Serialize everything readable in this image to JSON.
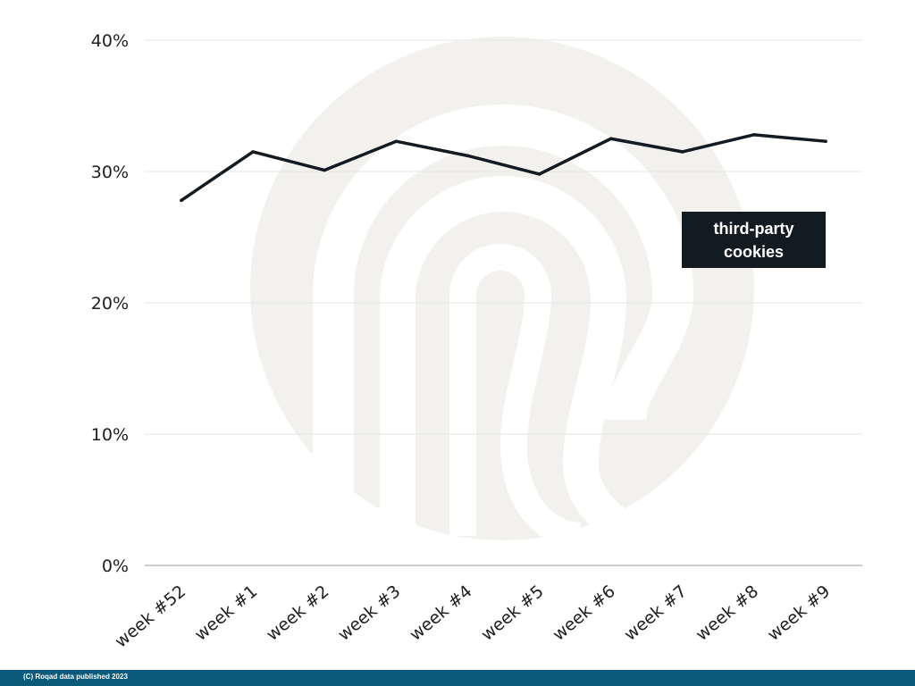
{
  "chart_data": {
    "type": "line",
    "categories": [
      "week #52",
      "week #1",
      "week #2",
      "week #3",
      "week #4",
      "week #5",
      "week #6",
      "week #7",
      "week #8",
      "week #9"
    ],
    "series": [
      {
        "name": "third-party cookies",
        "label_lines": [
          "third-party",
          "cookies"
        ],
        "values": [
          27.8,
          31.5,
          30.1,
          32.3,
          31.2,
          29.8,
          32.5,
          31.5,
          32.8,
          32.3
        ],
        "color": "#131b22"
      }
    ],
    "ylim": [
      0,
      40
    ],
    "yticks": [
      0,
      10,
      20,
      30,
      40
    ],
    "ytick_labels": [
      "0%",
      "10%",
      "20%",
      "30%",
      "40%"
    ],
    "title": "",
    "xlabel": "",
    "ylabel": "",
    "grid": true,
    "legend": "inline label near right end of series",
    "colors": {
      "grid": "#e6e6e6",
      "axis": "#999999",
      "watermark": "#f3f1ee",
      "label_bg": "#131b22"
    }
  },
  "footer": {
    "text": "(C) Roqad data published 2023",
    "color": "#0b5a7a"
  },
  "watermark": {
    "icon": "roqad-logo-watermark"
  }
}
